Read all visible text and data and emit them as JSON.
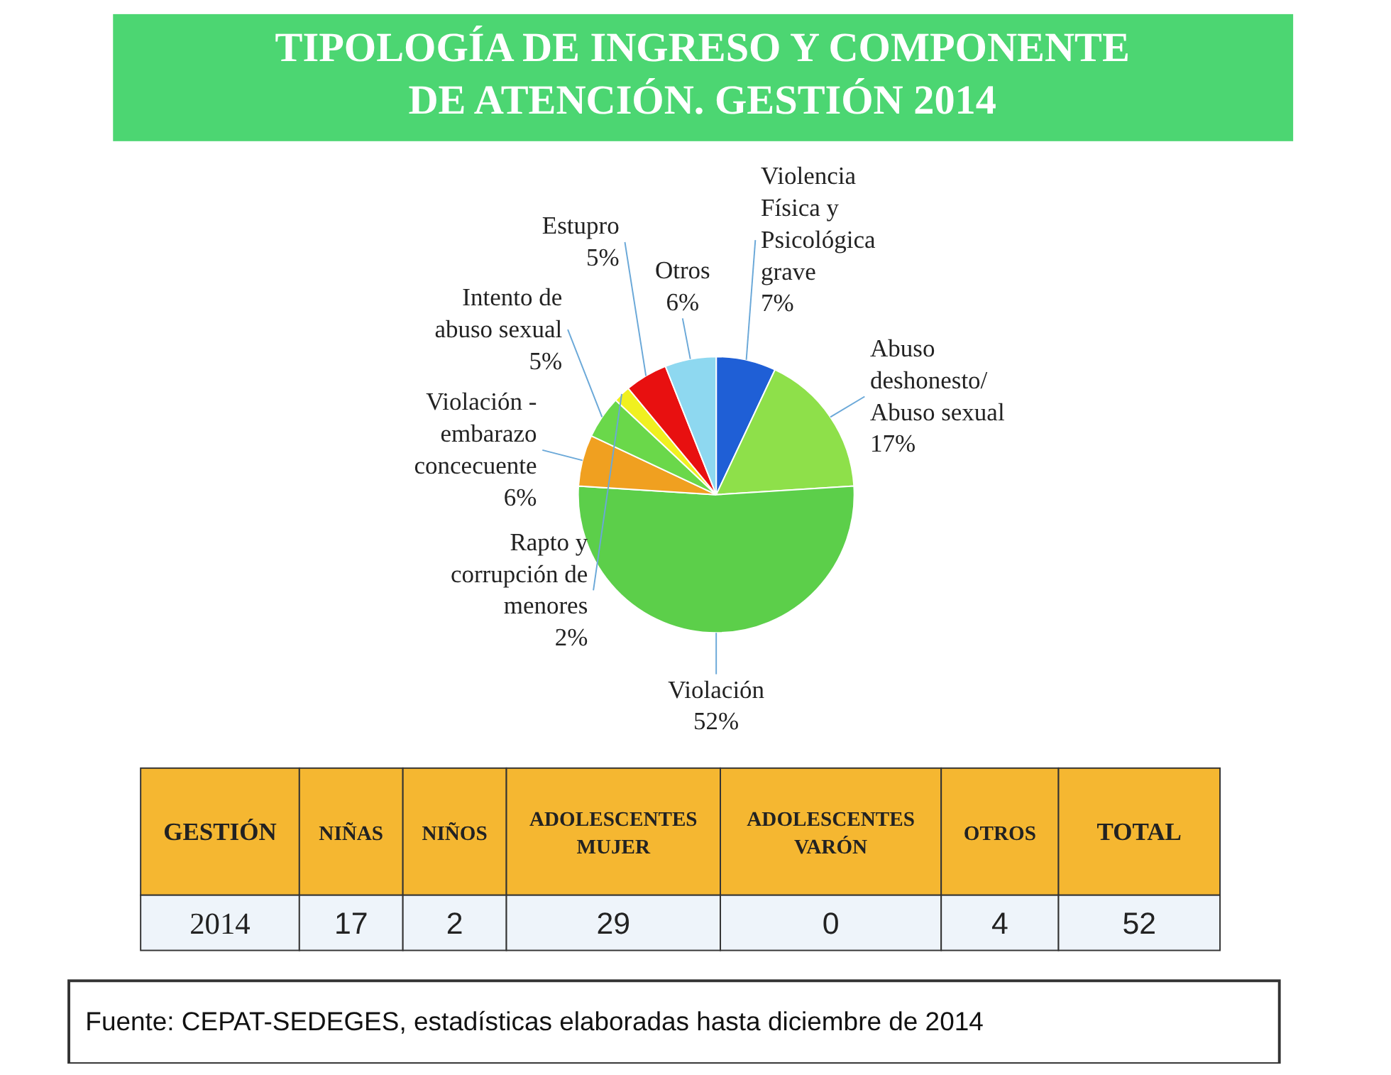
{
  "chart_data": [
    {
      "type": "pie",
      "title": "TIPOLOGÍA DE INGRESO Y COMPONENTE DE ATENCIÓN. GESTIÓN 2014",
      "categories": [
        "Violencia Física y Psicológica grave",
        "Abuso deshonesto/ Abuso sexual",
        "Violación",
        "Violación - embarazo concecuente",
        "Intento de abuso sexual",
        "Rapto y corrupción de menores",
        "Estupro",
        "Otros"
      ],
      "values": [
        7,
        17,
        52,
        6,
        5,
        2,
        5,
        6
      ],
      "value_labels": [
        "7%",
        "17%",
        "52%",
        "6%",
        "5%",
        "2%",
        "5%",
        "6%"
      ],
      "colors": [
        "#1f5fd6",
        "#8ee04a",
        "#5ccf4a",
        "#f0a020",
        "#6ad84a",
        "#f0f020",
        "#e81010",
        "#8ed8f0"
      ],
      "annotations": [
        "Fuente: CEPAT-SEDEGES, estadísticas elaboradas hasta diciembre de 2014"
      ]
    },
    {
      "type": "other",
      "legend_title": "GESTIÓN",
      "categories": [
        "NIÑAS",
        "NIÑOS",
        "ADOLESCENTES MUJER",
        "ADOLESCENTES VARÓN",
        "OTROS",
        "TOTAL"
      ],
      "series": [
        {
          "name": "2014",
          "values": [
            17,
            2,
            29,
            0,
            4,
            52
          ]
        }
      ],
      "data_labels": true
    }
  ]
}
